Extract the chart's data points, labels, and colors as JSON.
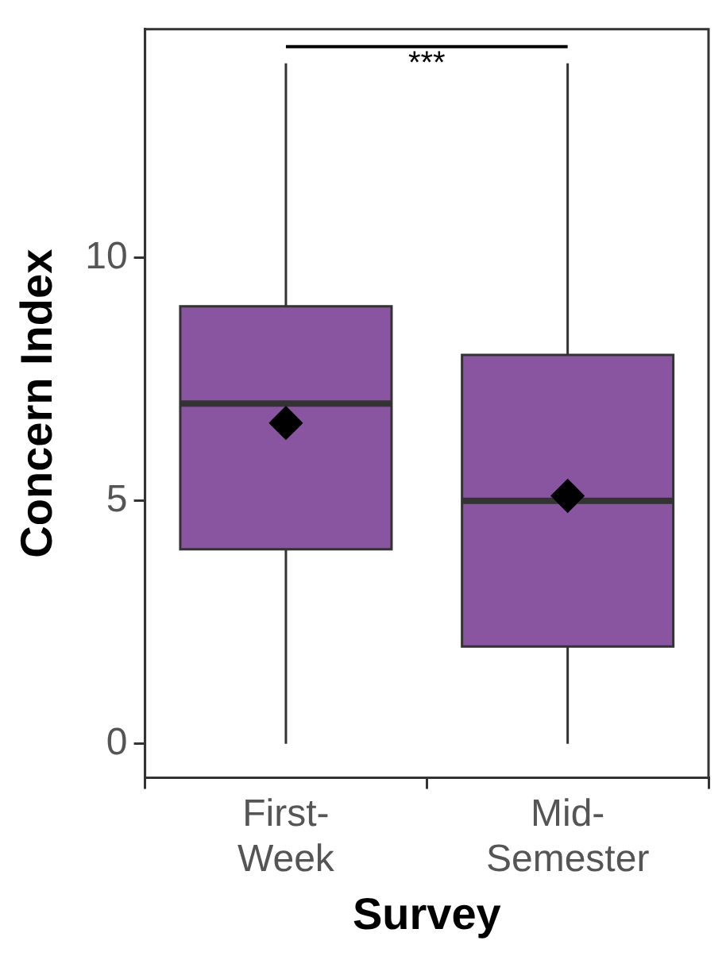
{
  "chart_data": {
    "type": "box",
    "xlabel": "Survey",
    "ylabel": "Concern Index",
    "categories": [
      "First-Week",
      "Mid-Semester"
    ],
    "boxes": [
      {
        "low": 0,
        "q1": 4,
        "median": 7,
        "q3": 9,
        "high": 14,
        "mean": 6.6
      },
      {
        "low": 0,
        "q1": 2,
        "median": 5,
        "q3": 8,
        "high": 14,
        "mean": 5.1
      }
    ],
    "color": "#8a55a0",
    "marker": "diamond",
    "ylim": [
      -0.7,
      14.7
    ],
    "yticks": [
      0,
      5,
      10
    ],
    "grid": false,
    "legend": false,
    "annotations": [
      "***"
    ]
  }
}
